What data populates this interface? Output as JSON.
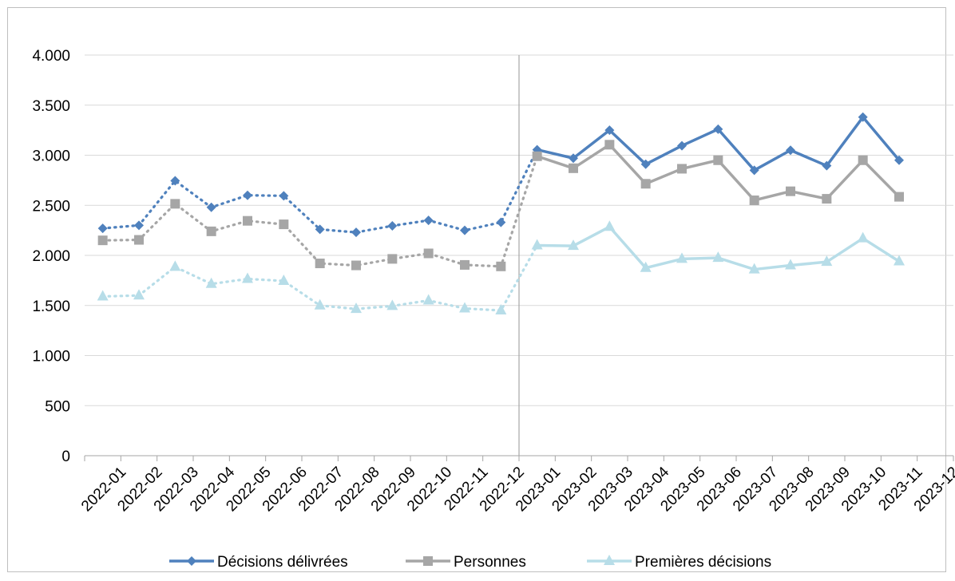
{
  "chart_data": {
    "type": "line",
    "categories": [
      "2022-01",
      "2022-02",
      "2022-03",
      "2022-04",
      "2022-05",
      "2022-06",
      "2022-07",
      "2022-08",
      "2022-09",
      "2022-10",
      "2022-11",
      "2022-12",
      "2023-01",
      "2023-02",
      "2023-03",
      "2023-04",
      "2023-05",
      "2023-06",
      "2023-07",
      "2023-08",
      "2023-09",
      "2023-10",
      "2023-11",
      "2023-12"
    ],
    "ylim": [
      0,
      4000
    ],
    "yticks": [
      0,
      500,
      1000,
      1500,
      2000,
      2500,
      3000,
      3500,
      4000
    ],
    "ytick_labels": [
      "0",
      "500",
      "1.000",
      "1.500",
      "2.000",
      "2.500",
      "3.000",
      "3.500",
      "4.000"
    ],
    "grid": "horizontal",
    "legend_position": "bottom",
    "divider_between": [
      "2022-12",
      "2023-01"
    ],
    "series": [
      {
        "name": "Décisions délivrées",
        "color": "#4f81bd",
        "marker": "diamond",
        "values": [
          2270,
          2300,
          2745,
          2480,
          2600,
          2595,
          2260,
          2230,
          2295,
          2350,
          2250,
          2330,
          3055,
          2970,
          3250,
          2910,
          3095,
          3260,
          2850,
          3050,
          2895,
          3380,
          2950,
          null
        ]
      },
      {
        "name": "Personnes",
        "color": "#a6a6a6",
        "marker": "square",
        "values": [
          2150,
          2155,
          2515,
          2240,
          2345,
          2310,
          1920,
          1900,
          1965,
          2020,
          1905,
          1890,
          2990,
          2870,
          3105,
          2715,
          2865,
          2950,
          2550,
          2640,
          2565,
          2950,
          2585,
          null
        ]
      },
      {
        "name": "Premières décisions",
        "color": "#b7dde8",
        "marker": "triangle",
        "values": [
          1590,
          1600,
          1885,
          1715,
          1765,
          1745,
          1500,
          1465,
          1495,
          1550,
          1470,
          1450,
          2100,
          2095,
          2285,
          1875,
          1965,
          1975,
          1860,
          1900,
          1935,
          2170,
          1940,
          null
        ]
      }
    ]
  }
}
